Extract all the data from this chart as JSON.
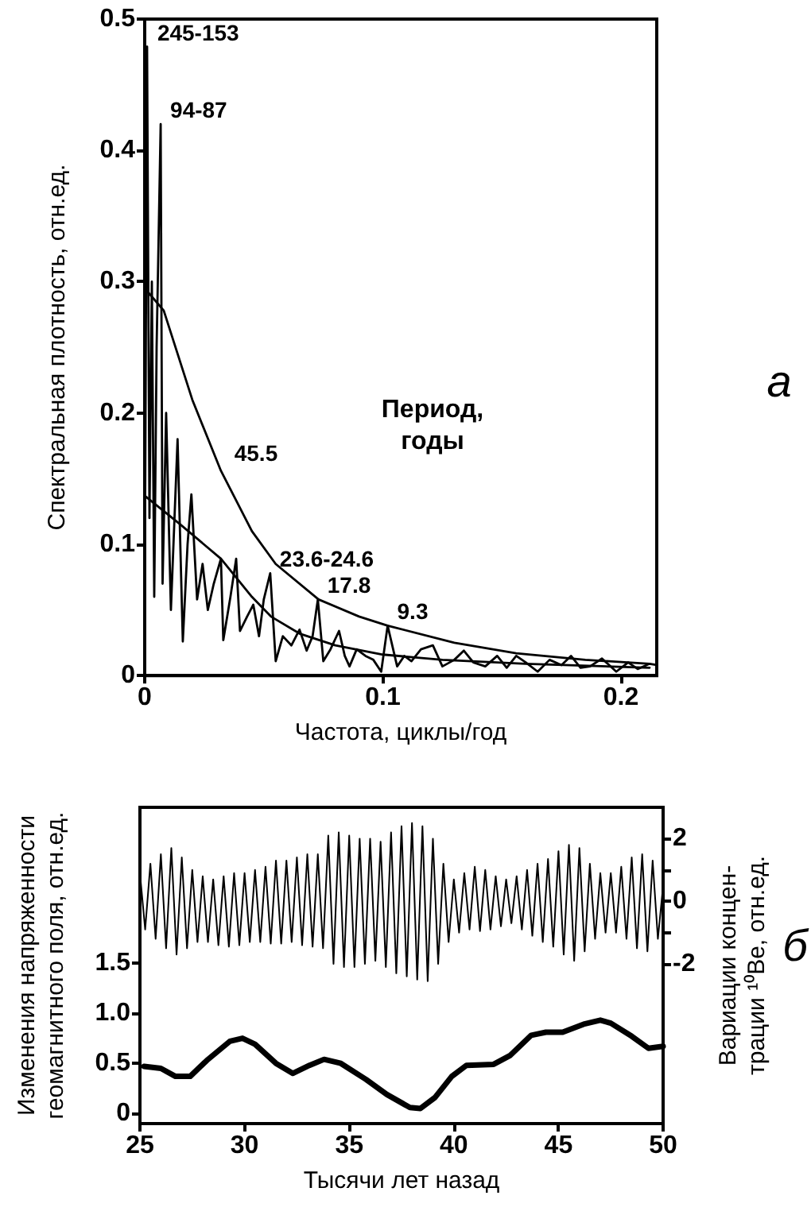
{
  "chart_data": [
    {
      "type": "line",
      "xlabel": "Частота, циклы/год",
      "ylabel": "Спектральная плотность, отн.ед.",
      "xlim": [
        0,
        0.215
      ],
      "xticks": [
        0,
        0.1,
        0.2
      ],
      "ylim": [
        0,
        0.5
      ],
      "yticks": [
        0,
        0.1,
        0.2,
        0.3,
        0.4,
        0.5
      ],
      "grid": false,
      "marker": "none",
      "annotations": [
        {
          "text": "245-153",
          "x": 0.0013,
          "y": 0.479
        },
        {
          "text": "94-87",
          "x": 0.0067,
          "y": 0.42
        },
        {
          "text": "45.5",
          "x": 0.0196,
          "y": 0.138
        },
        {
          "text": "23.6-24.6",
          "x": 0.0527,
          "y": 0.078
        },
        {
          "text": "17.8",
          "x": 0.0727,
          "y": 0.058
        },
        {
          "text": "9.3",
          "x": 0.102,
          "y": 0.038
        },
        "Период,\nгоды",
        "а"
      ],
      "series": [
        {
          "color": "#000000",
          "x": [
            0,
            0.001,
            0.002,
            0.003,
            0.004,
            0.005,
            0.0067,
            0.0075,
            0.009,
            0.011,
            0.0138,
            0.016,
            0.018,
            0.0196,
            0.022,
            0.0243,
            0.0265,
            0.029,
            0.032,
            0.033,
            0.036,
            0.0384,
            0.04,
            0.043,
            0.0456,
            0.048,
            0.05,
            0.0527,
            0.055,
            0.058,
            0.0616,
            0.065,
            0.068,
            0.0705,
            0.0727,
            0.075,
            0.078,
            0.0816,
            0.084,
            0.086,
            0.089,
            0.0927,
            0.096,
            0.0993,
            0.102,
            0.106,
            0.109,
            0.112,
            0.116,
            0.121,
            0.125,
            0.13,
            0.134,
            0.138,
            0.143,
            0.148,
            0.152,
            0.156,
            0.16,
            0.165,
            0.17,
            0.175,
            0.179,
            0.183,
            0.187,
            0.192,
            0.198,
            0.203,
            0.207,
            0.212,
            0.215
          ],
          "values": [
            0.05,
            0.479,
            0.12,
            0.3,
            0.06,
            0.25,
            0.42,
            0.07,
            0.2,
            0.05,
            0.18,
            0.026,
            0.1,
            0.138,
            0.058,
            0.085,
            0.05,
            0.07,
            0.089,
            0.027,
            0.06,
            0.089,
            0.034,
            0.045,
            0.054,
            0.03,
            0.058,
            0.078,
            0.011,
            0.03,
            0.023,
            0.035,
            0.019,
            0.03,
            0.058,
            0.011,
            0.02,
            0.034,
            0.015,
            0.007,
            0.02,
            0.015,
            0.012,
            0.003,
            0.038,
            0.007,
            0.015,
            0.011,
            0.02,
            0.023,
            0.007,
            0.012,
            0.019,
            0.01,
            0.007,
            0.015,
            0.006,
            0.015,
            0.01,
            0.003,
            0.012,
            0.008,
            0.015,
            0.006,
            0.007,
            0.013,
            0.003,
            0.01,
            0.005,
            0.009,
            0.008
          ]
        },
        {
          "color": "#000000",
          "x": [
            0,
            0.008,
            0.02,
            0.032,
            0.045,
            0.055,
            0.073,
            0.09,
            0.102,
            0.13,
            0.156,
            0.185,
            0.212
          ],
          "values": [
            0.295,
            0.278,
            0.21,
            0.156,
            0.11,
            0.085,
            0.058,
            0.045,
            0.038,
            0.025,
            0.017,
            0.012,
            0.009
          ]
        },
        {
          "color": "#000000",
          "x": [
            0,
            0.015,
            0.032,
            0.045,
            0.053,
            0.065,
            0.08,
            0.1,
            0.125,
            0.16,
            0.212
          ],
          "values": [
            0.137,
            0.115,
            0.089,
            0.06,
            0.045,
            0.032,
            0.023,
            0.016,
            0.012,
            0.009,
            0.006
          ]
        }
      ]
    },
    {
      "type": "line",
      "xlabel": "Тысячи лет назад",
      "ylabel": "Изменения напряженности\nгеомагнитного поля, отн.ед.",
      "y2label": "Вариации концен-\nтрации ¹⁰Be, отн.ед.",
      "xlim": [
        25,
        50
      ],
      "xticks": [
        25,
        30,
        35,
        40,
        45,
        50
      ],
      "ylim": [
        -0.1,
        3.05
      ],
      "yticks": [
        0,
        0.5,
        {
          "value": 1,
          "label": "1.0"
        },
        1.5
      ],
      "y2lim": [
        -7.1,
        3.0
      ],
      "y2ticks": [
        -2,
        {
          "value": -1,
          "label": null
        },
        0,
        {
          "value": 1,
          "label": null
        },
        2
      ],
      "grid": false,
      "marker": "none",
      "annotations": [
        "б"
      ],
      "series": [
        {
          "color": "#000000",
          "axis": "y2",
          "x": [
            25,
            25.25,
            25.5,
            25.75,
            26,
            26.25,
            26.5,
            26.75,
            27,
            27.25,
            27.5,
            27.75,
            28,
            28.25,
            28.5,
            28.75,
            29,
            29.25,
            29.5,
            29.75,
            30,
            30.25,
            30.5,
            30.75,
            31,
            31.25,
            31.5,
            31.75,
            32,
            32.25,
            32.5,
            32.75,
            33,
            33.25,
            33.5,
            33.75,
            34,
            34.25,
            34.5,
            34.75,
            35,
            35.25,
            35.5,
            35.75,
            36,
            36.25,
            36.5,
            36.75,
            37,
            37.25,
            37.5,
            37.75,
            38,
            38.25,
            38.5,
            38.75,
            39,
            39.25,
            39.5,
            39.75,
            40,
            40.25,
            40.5,
            40.75,
            41,
            41.25,
            41.5,
            41.75,
            42,
            42.25,
            42.5,
            42.75,
            43,
            43.25,
            43.5,
            43.75,
            44,
            44.25,
            44.5,
            44.75,
            45,
            45.25,
            45.5,
            45.75,
            46,
            46.25,
            46.5,
            46.75,
            47,
            47.25,
            47.5,
            47.75,
            48,
            48.25,
            48.5,
            48.75,
            49,
            49.25,
            49.5,
            49.75,
            50
          ],
          "values": [
            0.9,
            -0.9,
            1.2,
            -1.2,
            1.5,
            -1.5,
            1.7,
            -1.7,
            1.4,
            -1.5,
            1.0,
            -1.3,
            0.8,
            -1.3,
            0.7,
            -1.4,
            0.8,
            -1.45,
            0.9,
            -1.4,
            0.9,
            -1.3,
            1.0,
            -1.3,
            1.1,
            -1.35,
            1.3,
            -1.35,
            1.3,
            -1.3,
            1.4,
            -1.4,
            1.5,
            -1.45,
            1.5,
            -1.5,
            2.1,
            -2.0,
            2.2,
            -2.1,
            2.1,
            -2.1,
            2.0,
            -2.0,
            2.0,
            -1.9,
            1.9,
            -2.1,
            2.2,
            -2.3,
            2.4,
            -2.4,
            2.5,
            -2.5,
            2.4,
            -2.55,
            2.0,
            -2.0,
            1.2,
            -1.3,
            0.7,
            -1.0,
            0.9,
            -0.9,
            1.1,
            -0.95,
            1.0,
            -0.9,
            0.8,
            -0.8,
            0.7,
            -0.7,
            0.8,
            -0.9,
            1.0,
            -1.1,
            1.2,
            -1.3,
            1.35,
            -1.45,
            1.6,
            -1.7,
            1.8,
            -1.9,
            1.7,
            -1.6,
            1.2,
            -1.2,
            0.9,
            -1.0,
            0.9,
            -1.0,
            1.1,
            -1.2,
            1.4,
            -1.5,
            1.5,
            -1.6,
            1.3,
            -1.2,
            0.5
          ]
        },
        {
          "color": "#000000",
          "x": [
            25.2,
            26,
            26.7,
            27.4,
            28.2,
            29.3,
            29.9,
            30.5,
            31.5,
            32.3,
            33.1,
            33.8,
            34.6,
            35.8,
            36.8,
            37.9,
            38.4,
            39.1,
            39.9,
            40.6,
            41.9,
            42.7,
            43.7,
            44.4,
            45.2,
            46.2,
            47,
            47.5,
            48.5,
            49.3,
            50
          ],
          "values": [
            0.47,
            0.45,
            0.37,
            0.37,
            0.53,
            0.72,
            0.75,
            0.69,
            0.5,
            0.4,
            0.48,
            0.54,
            0.5,
            0.34,
            0.19,
            0.06,
            0.05,
            0.16,
            0.37,
            0.48,
            0.49,
            0.58,
            0.78,
            0.81,
            0.81,
            0.89,
            0.93,
            0.9,
            0.77,
            0.65,
            0.67
          ]
        }
      ]
    }
  ]
}
